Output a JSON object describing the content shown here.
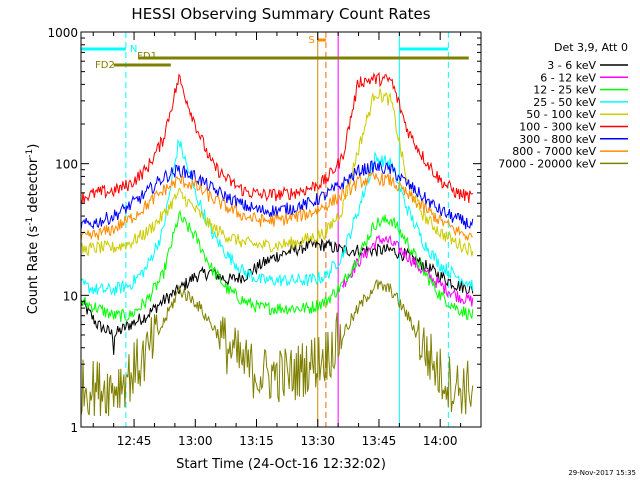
{
  "chart_data": {
    "type": "line",
    "title": "HESSI Observing Summary Count Rates",
    "xlabel": "Start Time (24-Oct-16 12:32:02)",
    "ylabel_prefix": "Count Rate (s",
    "ylabel_sup1": "-1",
    "ylabel_mid": " detector",
    "ylabel_sup2": "-1",
    "ylabel_suffix": ")",
    "yscale": "log",
    "xlim": [
      "12:32",
      "14:10"
    ],
    "ylim": [
      1,
      1000
    ],
    "xticks": [
      {
        "t": "12:45",
        "label": "12:45"
      },
      {
        "t": "13:00",
        "label": "13:00"
      },
      {
        "t": "13:15",
        "label": "13:15"
      },
      {
        "t": "13:30",
        "label": "13:30"
      },
      {
        "t": "13:45",
        "label": "13:45"
      },
      {
        "t": "14:00",
        "label": "14:00"
      }
    ],
    "yticks": [
      {
        "v": 1,
        "label": "1"
      },
      {
        "v": 10,
        "label": "10"
      },
      {
        "v": 100,
        "label": "100"
      },
      {
        "v": 1000,
        "label": "1000"
      }
    ],
    "legend_title": "Det 3,9, Att 0",
    "legend_position": "right",
    "series": [
      {
        "name": "3 - 6 keV",
        "color": "#000000",
        "x": [
          "12:32",
          "12:36",
          "12:40",
          "12:44",
          "12:48",
          "12:52",
          "12:56",
          "13:00",
          "13:04",
          "13:08",
          "13:12",
          "13:16",
          "13:20",
          "13:24",
          "13:28",
          "13:32",
          "13:36",
          "13:40",
          "13:44",
          "13:48",
          "13:52",
          "13:56",
          "14:00",
          "14:04",
          "14:08"
        ],
        "y": [
          9,
          6,
          5,
          6,
          7,
          9,
          11,
          14,
          15,
          13,
          14,
          17,
          20,
          22,
          24,
          24,
          22,
          22,
          22,
          22,
          20,
          17,
          14,
          12,
          11
        ]
      },
      {
        "name": "6 - 12 keV",
        "color": "#ff00ff",
        "x": [
          "13:36",
          "13:40",
          "13:44",
          "13:46",
          "13:48",
          "13:52",
          "13:56",
          "14:00",
          "14:04",
          "14:08"
        ],
        "y": [
          12,
          18,
          25,
          27,
          25,
          20,
          15,
          12,
          10,
          9
        ]
      },
      {
        "name": "12 - 25 keV",
        "color": "#00ff00",
        "x": [
          "12:32",
          "12:36",
          "12:40",
          "12:44",
          "12:48",
          "12:52",
          "12:56",
          "13:00",
          "13:04",
          "13:08",
          "13:12",
          "13:16",
          "13:20",
          "13:24",
          "13:28",
          "13:32",
          "13:36",
          "13:40",
          "13:44",
          "13:48",
          "13:52",
          "13:56",
          "14:00",
          "14:04",
          "14:08"
        ],
        "y": [
          9,
          8,
          7,
          7,
          9,
          14,
          40,
          28,
          16,
          11,
          9,
          8,
          8,
          8,
          8,
          9,
          12,
          20,
          35,
          38,
          25,
          15,
          10,
          8,
          7
        ]
      },
      {
        "name": "25 - 50 keV",
        "color": "#00ffff",
        "x": [
          "12:32",
          "12:36",
          "12:40",
          "12:44",
          "12:48",
          "12:52",
          "12:56",
          "13:00",
          "13:04",
          "13:08",
          "13:12",
          "13:16",
          "13:20",
          "13:24",
          "13:28",
          "13:32",
          "13:36",
          "13:40",
          "13:44",
          "13:48",
          "13:52",
          "13:56",
          "14:00",
          "14:04",
          "14:08"
        ],
        "y": [
          12,
          11,
          11,
          12,
          16,
          30,
          150,
          60,
          30,
          20,
          15,
          13,
          13,
          13,
          13,
          14,
          20,
          45,
          110,
          100,
          45,
          25,
          17,
          14,
          12
        ]
      },
      {
        "name": "50 - 100 keV",
        "color": "#cccc00",
        "x": [
          "12:32",
          "12:36",
          "12:40",
          "12:44",
          "12:48",
          "12:52",
          "12:56",
          "13:00",
          "13:04",
          "13:08",
          "13:12",
          "13:16",
          "13:20",
          "13:24",
          "13:28",
          "13:32",
          "13:36",
          "13:40",
          "13:44",
          "13:48",
          "13:52",
          "13:56",
          "14:00",
          "14:04",
          "14:08"
        ],
        "y": [
          22,
          23,
          23,
          25,
          30,
          40,
          60,
          45,
          33,
          28,
          25,
          24,
          24,
          25,
          27,
          30,
          45,
          130,
          350,
          300,
          70,
          40,
          30,
          25,
          22
        ]
      },
      {
        "name": "100 - 300 keV",
        "color": "#ff0000",
        "x": [
          "12:32",
          "12:36",
          "12:40",
          "12:44",
          "12:48",
          "12:52",
          "12:56",
          "13:00",
          "13:04",
          "13:08",
          "13:12",
          "13:16",
          "13:20",
          "13:24",
          "13:28",
          "13:32",
          "13:36",
          "13:40",
          "13:44",
          "13:48",
          "13:52",
          "13:56",
          "14:00",
          "14:04",
          "14:08"
        ],
        "y": [
          55,
          60,
          62,
          70,
          90,
          150,
          450,
          200,
          100,
          75,
          62,
          58,
          58,
          60,
          65,
          75,
          110,
          420,
          440,
          430,
          180,
          110,
          75,
          60,
          55
        ]
      },
      {
        "name": "300 - 800 keV",
        "color": "#0000ff",
        "x": [
          "12:32",
          "12:36",
          "12:40",
          "12:44",
          "12:48",
          "12:52",
          "12:56",
          "13:00",
          "13:04",
          "13:08",
          "13:12",
          "13:16",
          "13:20",
          "13:24",
          "13:28",
          "13:32",
          "13:36",
          "13:40",
          "13:44",
          "13:48",
          "13:52",
          "13:56",
          "14:00",
          "14:04",
          "14:08"
        ],
        "y": [
          34,
          36,
          40,
          48,
          60,
          78,
          90,
          80,
          65,
          55,
          48,
          44,
          44,
          46,
          50,
          58,
          70,
          88,
          95,
          90,
          70,
          55,
          44,
          38,
          34
        ]
      },
      {
        "name": "800 - 7000 keV",
        "color": "#ff8c00",
        "x": [
          "12:32",
          "12:36",
          "12:40",
          "12:44",
          "12:48",
          "12:52",
          "12:56",
          "13:00",
          "13:04",
          "13:08",
          "13:12",
          "13:16",
          "13:20",
          "13:24",
          "13:28",
          "13:32",
          "13:36",
          "13:40",
          "13:44",
          "13:48",
          "13:52",
          "13:56",
          "14:00",
          "14:04",
          "14:08"
        ],
        "y": [
          27,
          29,
          32,
          38,
          48,
          62,
          75,
          68,
          55,
          46,
          40,
          37,
          37,
          39,
          42,
          48,
          58,
          72,
          78,
          74,
          58,
          46,
          37,
          31,
          27
        ]
      },
      {
        "name": "7000 - 20000 keV",
        "color": "#808000",
        "x": [
          "12:32",
          "12:36",
          "12:40",
          "12:44",
          "12:48",
          "12:52",
          "12:56",
          "13:00",
          "13:04",
          "13:08",
          "13:12",
          "13:16",
          "13:20",
          "13:24",
          "13:28",
          "13:32",
          "13:36",
          "13:40",
          "13:44",
          "13:48",
          "13:52",
          "13:56",
          "14:00",
          "14:04",
          "14:08"
        ],
        "y": [
          2,
          2,
          2,
          2.5,
          3.5,
          6,
          11,
          9,
          6,
          4,
          3,
          2.5,
          2.5,
          2.5,
          3,
          3.5,
          5,
          8,
          12,
          11,
          7,
          4,
          2.5,
          2,
          2
        ]
      }
    ],
    "vlines": [
      {
        "t": "12:32",
        "color": "#00ffff",
        "style": "solid"
      },
      {
        "t": "12:43",
        "color": "#00ffff",
        "style": "dashed"
      },
      {
        "t": "13:30",
        "color": "#cc8800",
        "style": "solid"
      },
      {
        "t": "13:32",
        "color": "#ff6600",
        "style": "dashed"
      },
      {
        "t": "13:35",
        "color": "#ff00ff",
        "style": "solid"
      },
      {
        "t": "13:50",
        "color": "#00ffff",
        "style": "solid"
      },
      {
        "t": "14:02",
        "color": "#00ffff",
        "style": "dashed"
      }
    ],
    "flags": [
      {
        "label": "N",
        "color": "#00ffff",
        "row": 1,
        "segments": [
          [
            "12:32",
            "12:43"
          ],
          [
            "13:50",
            "14:02"
          ]
        ]
      },
      {
        "label": "S",
        "color": "#ff8c00",
        "row": 0,
        "segments": [
          [
            "13:30",
            "13:32"
          ]
        ]
      },
      {
        "label": "FD1",
        "color": "#808000",
        "row": 2,
        "segments": [
          [
            "12:46",
            "14:07"
          ]
        ]
      },
      {
        "label": "FD2",
        "color": "#808000",
        "row": 3,
        "segments": [
          [
            "12:40",
            "12:54"
          ]
        ]
      }
    ],
    "timestamp": "29-Nov-2017 15:35"
  }
}
